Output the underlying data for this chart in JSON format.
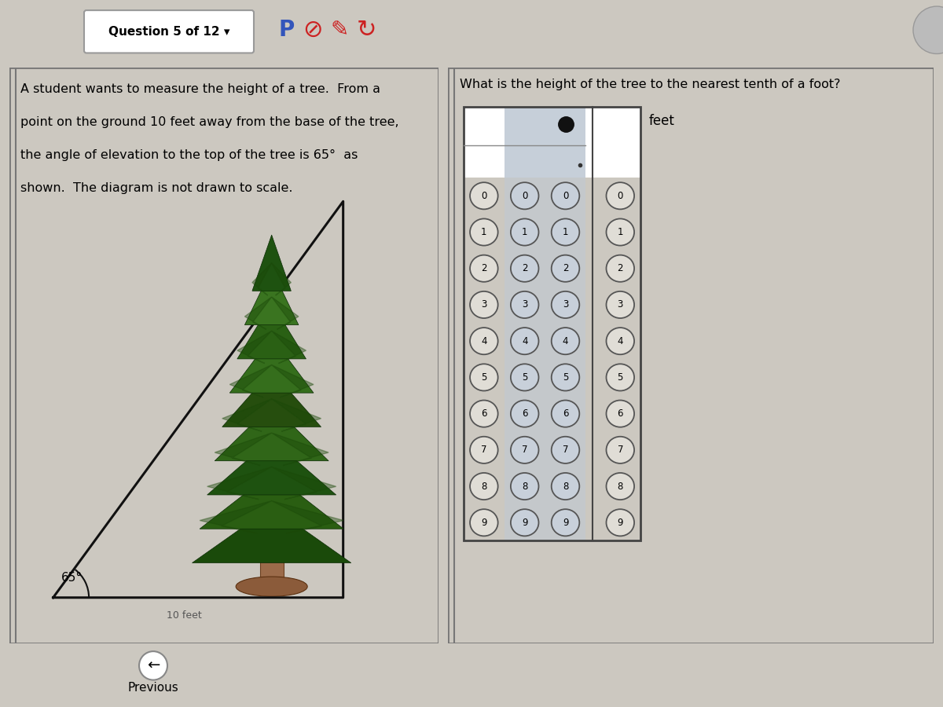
{
  "bg_color": "#ccc8c0",
  "header_bg": "#c8c4bc",
  "panel_bg": "#e0ddd6",
  "right_panel_bg": "#d8d4cc",
  "question_label": "Question 5 of 12 -",
  "problem_text_lines": [
    "A student wants to measure the height of a tree.  From a",
    "point on the ground 10 feet away from the base of the tree,",
    "the angle of elevation to the top of the tree is 65°  as",
    "shown.  The diagram is not drawn to scale."
  ],
  "question_text": "What is the height of the tree to the nearest tenth of a foot?",
  "answer_label": "feet",
  "angle_label": "65°",
  "triangle_color": "#111111",
  "bubble_border_color": "#555555",
  "bubble_fill_normal": "#e0ddd6",
  "bubble_fill_highlight": "#c8ccd4",
  "highlight_cols": [
    1,
    2
  ],
  "header_highlight_cols": [
    1,
    2
  ],
  "selected_dot_col": 2,
  "decimal_col": 3,
  "n_rows": 10,
  "n_cols": 4,
  "digits": [
    "0",
    "1",
    "2",
    "3",
    "4",
    "5",
    "6",
    "7",
    "8",
    "9"
  ]
}
